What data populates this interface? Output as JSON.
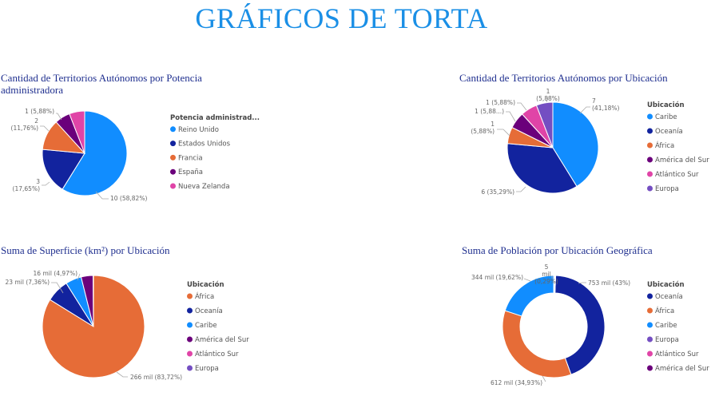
{
  "page": {
    "title": "GRÁFICOS DE TORTA"
  },
  "colors": {
    "blue_light": "#118dff",
    "navy": "#12239e",
    "orange": "#e66c37",
    "purple_dark": "#6b007b",
    "pink": "#e044a7",
    "violet": "#744ec2"
  },
  "chart_data": [
    {
      "id": "chart1",
      "type": "pie",
      "title": "Cantidad de Territorios Autónomos por Potencia administradora",
      "legend_title": "Potencia administrad...",
      "legend_position": "right",
      "slices": [
        {
          "name": "Reino Unido",
          "value": 10,
          "label": "10 (58,82%)",
          "color": "#118dff"
        },
        {
          "name": "Estados Unidos",
          "value": 3,
          "label": "3 (17,65%)",
          "color": "#12239e"
        },
        {
          "name": "Francia",
          "value": 2,
          "label": "2 (11,76%)",
          "color": "#e66c37"
        },
        {
          "name": "España",
          "value": 1,
          "label": "1 (5,88%)",
          "color": "#6b007b"
        },
        {
          "name": "Nueva Zelanda",
          "value": 1,
          "label": "",
          "color": "#e044a7"
        }
      ]
    },
    {
      "id": "chart2",
      "type": "pie",
      "title": "Cantidad de Territorios Autónomos por Ubicación",
      "legend_title": "Ubicación",
      "legend_position": "right",
      "slices": [
        {
          "name": "Caribe",
          "value": 7,
          "label": "7 (41,18%)",
          "color": "#118dff"
        },
        {
          "name": "Oceanía",
          "value": 6,
          "label": "6 (35,29%)",
          "color": "#12239e"
        },
        {
          "name": "África",
          "value": 1,
          "label": "1 (5,88%)",
          "color": "#e66c37"
        },
        {
          "name": "América del Sur",
          "value": 1,
          "label": "1 (5,88...)",
          "color": "#6b007b"
        },
        {
          "name": "Atlántico Sur",
          "value": 1,
          "label": "1 (5,88%)",
          "color": "#e044a7"
        },
        {
          "name": "Europa",
          "value": 1,
          "label": "1 (5,88%)",
          "color": "#744ec2"
        }
      ]
    },
    {
      "id": "chart3",
      "type": "pie",
      "title": "Suma de Superficie (km²) por Ubicación",
      "legend_title": "Ubicación",
      "legend_position": "right",
      "slices": [
        {
          "name": "África",
          "value": 266,
          "label": "266 mil (83,72%)",
          "color": "#e66c37"
        },
        {
          "name": "Oceanía",
          "value": 23,
          "label": "23 mil (7,36%)",
          "color": "#12239e"
        },
        {
          "name": "Caribe",
          "value": 16,
          "label": "16 mil (4,97%)",
          "color": "#118dff"
        },
        {
          "name": "América del Sur",
          "value": 12,
          "label": "",
          "color": "#6b007b"
        },
        {
          "name": "Atlántico Sur",
          "value": 0.3,
          "label": "",
          "color": "#e044a7"
        },
        {
          "name": "Europa",
          "value": 0.05,
          "label": "",
          "color": "#744ec2"
        }
      ]
    },
    {
      "id": "chart4",
      "type": "donut",
      "title": "Suma de Población por Ubicación Geográfica",
      "legend_title": "Ubicación",
      "legend_position": "right",
      "slices": [
        {
          "name": "Oceanía",
          "value": 753,
          "label": "753 mil (43%)",
          "color": "#12239e"
        },
        {
          "name": "África",
          "value": 612,
          "label": "612 mil (34,93%)",
          "color": "#e66c37"
        },
        {
          "name": "Caribe",
          "value": 344,
          "label": "344 mil (19,62%)",
          "color": "#118dff"
        },
        {
          "name": "Europa",
          "value": 5,
          "label": "5 mil (0,29%)",
          "color": "#744ec2"
        },
        {
          "name": "Atlántico Sur",
          "value": 3,
          "label": "",
          "color": "#e044a7"
        },
        {
          "name": "América del Sur",
          "value": 2,
          "label": "",
          "color": "#6b007b"
        }
      ]
    }
  ]
}
